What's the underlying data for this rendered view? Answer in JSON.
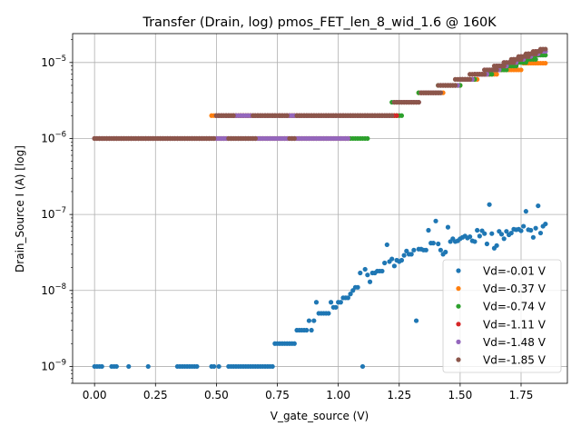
{
  "chart_data": {
    "type": "scatter",
    "title": "Transfer (Drain, log) pmos_FET_len_8_wid_1.6 @ 160K",
    "xlabel": "V_gate_source (V)",
    "ylabel": "Drain_Source I (A) [log]",
    "xlim": [
      -0.09,
      1.94
    ],
    "ylim": [
      6e-10,
      2.4e-05
    ],
    "yscale": "log",
    "grid": true,
    "legend_position": "lower right",
    "x_ticks": [
      {
        "value": 0.0,
        "label": "0.00"
      },
      {
        "value": 0.25,
        "label": "0.25"
      },
      {
        "value": 0.5,
        "label": "0.50"
      },
      {
        "value": 0.75,
        "label": "0.75"
      },
      {
        "value": 1.0,
        "label": "1.00"
      },
      {
        "value": 1.25,
        "label": "1.25"
      },
      {
        "value": 1.5,
        "label": "1.50"
      },
      {
        "value": 1.75,
        "label": "1.75"
      }
    ],
    "y_ticks": [
      {
        "value": 1e-09,
        "base": "10",
        "exp": "−9"
      },
      {
        "value": 1e-08,
        "base": "10",
        "exp": "−8"
      },
      {
        "value": 1e-07,
        "base": "10",
        "exp": "−7"
      },
      {
        "value": 1e-06,
        "base": "10",
        "exp": "−6"
      },
      {
        "value": 1e-05,
        "base": "10",
        "exp": "−5"
      }
    ],
    "series": [
      {
        "name": "Vd=-0.01 V",
        "color": "#1f77b4",
        "points": [
          [
            0.0,
            1e-09
          ],
          [
            0.01,
            1e-09
          ],
          [
            0.02,
            1e-09
          ],
          [
            0.03,
            1e-09
          ],
          [
            0.07,
            1e-09
          ],
          [
            0.08,
            1e-09
          ],
          [
            0.09,
            1e-09
          ],
          [
            0.14,
            1e-09
          ],
          [
            0.22,
            1e-09
          ],
          [
            0.34,
            1e-09
          ],
          [
            0.35,
            1e-09
          ],
          [
            0.36,
            1e-09
          ],
          [
            0.37,
            1e-09
          ],
          [
            0.38,
            1e-09
          ],
          [
            0.39,
            1e-09
          ],
          [
            0.4,
            1e-09
          ],
          [
            0.41,
            1e-09
          ],
          [
            0.42,
            1e-09
          ],
          [
            0.48,
            1e-09
          ],
          [
            0.49,
            1e-09
          ],
          [
            0.51,
            1e-09
          ],
          [
            0.55,
            1e-09
          ],
          [
            0.56,
            1e-09
          ],
          [
            0.57,
            1e-09
          ],
          [
            0.58,
            1e-09
          ],
          [
            0.59,
            1e-09
          ],
          [
            0.6,
            1e-09
          ],
          [
            0.61,
            1e-09
          ],
          [
            0.62,
            1e-09
          ],
          [
            0.63,
            1e-09
          ],
          [
            0.64,
            1e-09
          ],
          [
            0.65,
            1e-09
          ],
          [
            0.66,
            1e-09
          ],
          [
            0.67,
            1e-09
          ],
          [
            0.68,
            1e-09
          ],
          [
            0.69,
            1e-09
          ],
          [
            0.7,
            1e-09
          ],
          [
            0.71,
            1e-09
          ],
          [
            0.72,
            1e-09
          ],
          [
            0.73,
            1e-09
          ],
          [
            0.74,
            2e-09
          ],
          [
            0.75,
            2e-09
          ],
          [
            0.76,
            2e-09
          ],
          [
            0.77,
            2e-09
          ],
          [
            0.78,
            2e-09
          ],
          [
            0.79,
            2e-09
          ],
          [
            0.8,
            2e-09
          ],
          [
            0.81,
            2e-09
          ],
          [
            0.82,
            2e-09
          ],
          [
            0.83,
            3e-09
          ],
          [
            0.84,
            3e-09
          ],
          [
            0.85,
            3e-09
          ],
          [
            0.86,
            3e-09
          ],
          [
            0.87,
            3e-09
          ],
          [
            0.88,
            4e-09
          ],
          [
            0.89,
            3e-09
          ],
          [
            0.9,
            4e-09
          ],
          [
            0.91,
            7e-09
          ],
          [
            0.92,
            5e-09
          ],
          [
            0.93,
            5e-09
          ],
          [
            0.94,
            5e-09
          ],
          [
            0.95,
            5e-09
          ],
          [
            0.96,
            5e-09
          ],
          [
            0.97,
            7e-09
          ],
          [
            0.98,
            6e-09
          ],
          [
            0.99,
            6e-09
          ],
          [
            1.0,
            7e-09
          ],
          [
            1.01,
            7e-09
          ],
          [
            1.02,
            8e-09
          ],
          [
            1.03,
            8e-09
          ],
          [
            1.04,
            8e-09
          ],
          [
            1.05,
            9e-09
          ],
          [
            1.06,
            1e-08
          ],
          [
            1.07,
            1.1e-08
          ],
          [
            1.08,
            1.1e-08
          ],
          [
            1.09,
            1.7e-08
          ],
          [
            1.1,
            1e-09
          ],
          [
            1.11,
            1.9e-08
          ],
          [
            1.12,
            1.6e-08
          ],
          [
            1.13,
            1.3e-08
          ],
          [
            1.14,
            1.7e-08
          ],
          [
            1.15,
            1.7e-08
          ],
          [
            1.16,
            1.8e-08
          ],
          [
            1.17,
            1.8e-08
          ],
          [
            1.18,
            1.8e-08
          ],
          [
            1.19,
            2.3e-08
          ],
          [
            1.2,
            4e-08
          ],
          [
            1.21,
            2.4e-08
          ],
          [
            1.22,
            2.6e-08
          ],
          [
            1.23,
            2.1e-08
          ],
          [
            1.24,
            2.5e-08
          ],
          [
            1.25,
            2.4e-08
          ],
          [
            1.26,
            2.5e-08
          ],
          [
            1.27,
            2.9e-08
          ],
          [
            1.28,
            3.3e-08
          ],
          [
            1.29,
            3e-08
          ],
          [
            1.3,
            3e-08
          ],
          [
            1.31,
            3.4e-08
          ],
          [
            1.32,
            4e-09
          ],
          [
            1.33,
            3.5e-08
          ],
          [
            1.34,
            3.5e-08
          ],
          [
            1.35,
            3.4e-08
          ],
          [
            1.36,
            3.4e-08
          ],
          [
            1.37,
            6.2e-08
          ],
          [
            1.38,
            4.2e-08
          ],
          [
            1.39,
            4.2e-08
          ],
          [
            1.4,
            8.2e-08
          ],
          [
            1.41,
            4.1e-08
          ],
          [
            1.42,
            3.4e-08
          ],
          [
            1.43,
            3e-08
          ],
          [
            1.44,
            3.2e-08
          ],
          [
            1.45,
            6.8e-08
          ],
          [
            1.46,
            4.4e-08
          ],
          [
            1.47,
            4.8e-08
          ],
          [
            1.48,
            4.4e-08
          ],
          [
            1.49,
            4.5e-08
          ],
          [
            1.5,
            4.8e-08
          ],
          [
            1.51,
            5e-08
          ],
          [
            1.52,
            5.2e-08
          ],
          [
            1.53,
            4.9e-08
          ],
          [
            1.54,
            5.1e-08
          ],
          [
            1.55,
            4.5e-08
          ],
          [
            1.56,
            4.4e-08
          ],
          [
            1.57,
            6.2e-08
          ],
          [
            1.58,
            5.2e-08
          ],
          [
            1.59,
            6.1e-08
          ],
          [
            1.6,
            5.6e-08
          ],
          [
            1.61,
            4.1e-08
          ],
          [
            1.62,
            1.35e-07
          ],
          [
            1.63,
            5.6e-08
          ],
          [
            1.64,
            3.6e-08
          ],
          [
            1.65,
            3.9e-08
          ],
          [
            1.66,
            6e-08
          ],
          [
            1.67,
            5.5e-08
          ],
          [
            1.68,
            4.8e-08
          ],
          [
            1.69,
            6e-08
          ],
          [
            1.7,
            5.4e-08
          ],
          [
            1.71,
            5.7e-08
          ],
          [
            1.72,
            6.4e-08
          ],
          [
            1.73,
            6.3e-08
          ],
          [
            1.74,
            6.4e-08
          ],
          [
            1.75,
            6.1e-08
          ],
          [
            1.76,
            7e-08
          ],
          [
            1.77,
            1.1e-07
          ],
          [
            1.78,
            6.3e-08
          ],
          [
            1.79,
            6.2e-08
          ],
          [
            1.8,
            5e-08
          ],
          [
            1.81,
            6.6e-08
          ],
          [
            1.82,
            1.3e-07
          ],
          [
            1.83,
            5.7e-08
          ],
          [
            1.84,
            7e-08
          ],
          [
            1.85,
            7.5e-08
          ]
        ]
      },
      {
        "name": "Vd=-0.37 V",
        "color": "#ff7f0e",
        "gen": [
          [
            0.0,
            0.47,
            0.01,
            1e-06
          ],
          [
            0.48,
            0.96,
            0.01,
            2e-06
          ],
          [
            0.97,
            1.24,
            0.01,
            2e-06
          ],
          [
            1.25,
            1.32,
            0.01,
            3e-06
          ],
          [
            1.33,
            1.43,
            0.01,
            4e-06
          ],
          [
            1.44,
            1.5,
            0.01,
            5e-06
          ],
          [
            1.51,
            1.57,
            0.01,
            6e-06
          ],
          [
            1.58,
            1.65,
            0.01,
            7e-06
          ],
          [
            1.66,
            1.75,
            0.01,
            8e-06
          ],
          [
            1.76,
            1.85,
            0.01,
            9.8e-06
          ]
        ]
      },
      {
        "name": "Vd=-0.74 V",
        "color": "#2ca02c",
        "gen": [
          [
            0.0,
            1.12,
            0.01,
            1e-06
          ],
          [
            0.5,
            1.26,
            0.01,
            2e-06
          ],
          [
            1.22,
            1.33,
            0.01,
            3e-06
          ],
          [
            1.33,
            1.42,
            0.01,
            4e-06
          ],
          [
            1.41,
            1.5,
            0.01,
            5e-06
          ],
          [
            1.5,
            1.56,
            0.01,
            6e-06
          ],
          [
            1.56,
            1.63,
            0.01,
            7e-06
          ],
          [
            1.62,
            1.69,
            0.01,
            8e-06
          ],
          [
            1.68,
            1.73,
            0.01,
            9e-06
          ],
          [
            1.72,
            1.77,
            0.01,
            1e-05
          ],
          [
            1.76,
            1.81,
            0.01,
            1.1e-05
          ],
          [
            1.8,
            1.85,
            0.01,
            1.25e-05
          ]
        ]
      },
      {
        "name": "Vd=-1.11 V",
        "color": "#d62728",
        "gen": [
          [
            0.0,
            1.04,
            0.01,
            1e-06
          ],
          [
            0.5,
            1.24,
            0.01,
            2e-06
          ],
          [
            1.23,
            1.33,
            0.01,
            3e-06
          ],
          [
            1.34,
            1.41,
            0.01,
            4e-06
          ],
          [
            1.42,
            1.49,
            0.01,
            5e-06
          ],
          [
            1.5,
            1.55,
            0.01,
            6e-06
          ],
          [
            1.56,
            1.61,
            0.01,
            7e-06
          ],
          [
            1.6,
            1.66,
            0.01,
            8e-06
          ],
          [
            1.65,
            1.69,
            0.01,
            9e-06
          ],
          [
            1.68,
            1.73,
            0.01,
            1e-05
          ],
          [
            1.72,
            1.76,
            0.01,
            1.1e-05
          ],
          [
            1.75,
            1.79,
            0.01,
            1.2e-05
          ],
          [
            1.78,
            1.82,
            0.01,
            1.3e-05
          ],
          [
            1.81,
            1.85,
            0.01,
            1.4e-05
          ]
        ]
      },
      {
        "name": "Vd=-1.48 V",
        "color": "#9467bd",
        "gen": [
          [
            0.0,
            1.04,
            0.01,
            1e-06
          ],
          [
            0.5,
            1.22,
            0.01,
            2e-06
          ],
          [
            1.23,
            1.33,
            0.01,
            3e-06
          ],
          [
            1.34,
            1.42,
            0.01,
            4e-06
          ],
          [
            1.42,
            1.49,
            0.01,
            5e-06
          ],
          [
            1.5,
            1.55,
            0.01,
            6e-06
          ],
          [
            1.56,
            1.61,
            0.01,
            7e-06
          ],
          [
            1.6,
            1.66,
            0.01,
            8e-06
          ],
          [
            1.65,
            1.69,
            0.01,
            9e-06
          ],
          [
            1.68,
            1.73,
            0.01,
            1e-05
          ],
          [
            1.72,
            1.76,
            0.01,
            1.1e-05
          ],
          [
            1.75,
            1.79,
            0.01,
            1.2e-05
          ],
          [
            1.78,
            1.82,
            0.01,
            1.3e-05
          ],
          [
            1.81,
            1.85,
            0.01,
            1.4e-05
          ]
        ]
      },
      {
        "name": "Vd=-1.85 V",
        "color": "#8c564b",
        "gen": [
          [
            0.0,
            0.49,
            0.01,
            1e-06
          ],
          [
            0.5,
            0.57,
            0.01,
            2e-06
          ],
          [
            0.55,
            0.66,
            0.01,
            1e-06
          ],
          [
            0.65,
            0.79,
            0.01,
            2e-06
          ],
          [
            0.8,
            0.82,
            0.01,
            1e-06
          ],
          [
            0.83,
            1.22,
            0.01,
            2e-06
          ],
          [
            1.23,
            1.33,
            0.01,
            3e-06
          ],
          [
            1.34,
            1.42,
            0.01,
            4e-06
          ],
          [
            1.41,
            1.48,
            0.01,
            5e-06
          ],
          [
            1.48,
            1.54,
            0.01,
            6e-06
          ],
          [
            1.54,
            1.6,
            0.01,
            7e-06
          ],
          [
            1.6,
            1.65,
            0.01,
            8e-06
          ],
          [
            1.64,
            1.68,
            0.01,
            9e-06
          ],
          [
            1.68,
            1.72,
            0.01,
            1e-05
          ],
          [
            1.71,
            1.75,
            0.01,
            1.1e-05
          ],
          [
            1.74,
            1.78,
            0.01,
            1.2e-05
          ],
          [
            1.77,
            1.81,
            0.01,
            1.3e-05
          ],
          [
            1.8,
            1.83,
            0.01,
            1.4e-05
          ],
          [
            1.83,
            1.85,
            0.01,
            1.5e-05
          ]
        ]
      }
    ]
  }
}
